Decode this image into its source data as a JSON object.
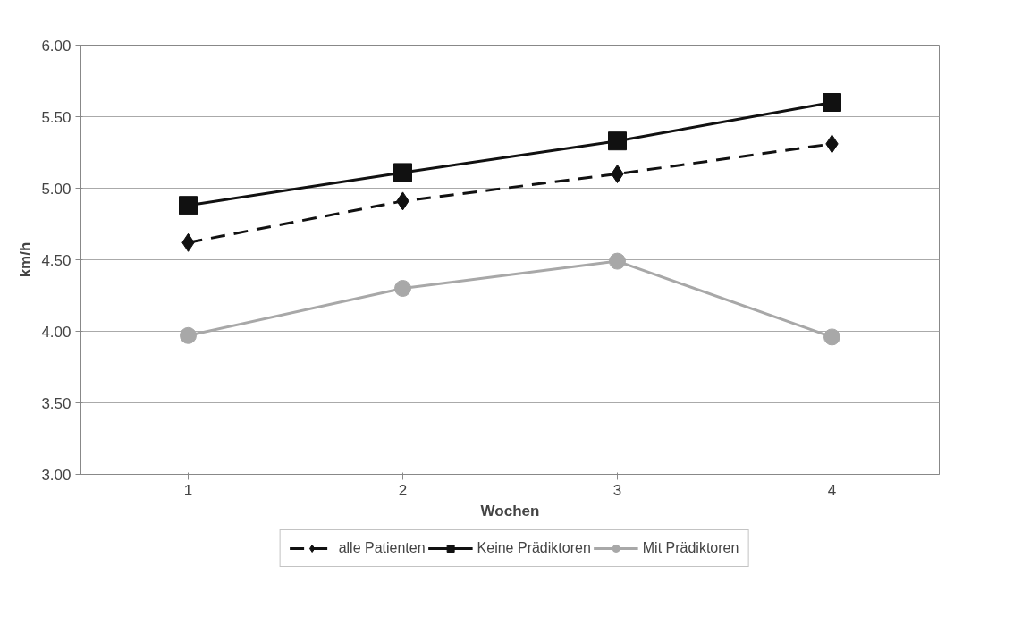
{
  "chart_data": {
    "type": "line",
    "xlabel": "Wochen",
    "ylabel": "km/h",
    "categories": [
      "1",
      "2",
      "3",
      "4"
    ],
    "series": [
      {
        "name": "alle Patienten",
        "color": "#111111",
        "marker": "diamond",
        "line_style": "dashed",
        "values": [
          4.62,
          4.91,
          5.1,
          5.31
        ]
      },
      {
        "name": "Keine Prädiktoren",
        "color": "#111111",
        "marker": "square",
        "line_style": "solid",
        "values": [
          4.88,
          5.11,
          5.33,
          5.6
        ]
      },
      {
        "name": "Mit Prädiktoren",
        "color": "#a8a8a8",
        "marker": "circle",
        "line_style": "solid",
        "values": [
          3.97,
          4.3,
          4.49,
          3.96
        ]
      }
    ],
    "ylim": [
      3.0,
      6.0
    ],
    "yticks": [
      {
        "value": 3.0,
        "label": "3.00"
      },
      {
        "value": 3.5,
        "label": "3.50"
      },
      {
        "value": 4.0,
        "label": "4.00"
      },
      {
        "value": 4.5,
        "label": "4.50"
      },
      {
        "value": 5.0,
        "label": "5.00"
      },
      {
        "value": 5.5,
        "label": "5.50"
      },
      {
        "value": 6.0,
        "label": "6.00"
      }
    ],
    "grid": "y",
    "legend": "bottom"
  }
}
